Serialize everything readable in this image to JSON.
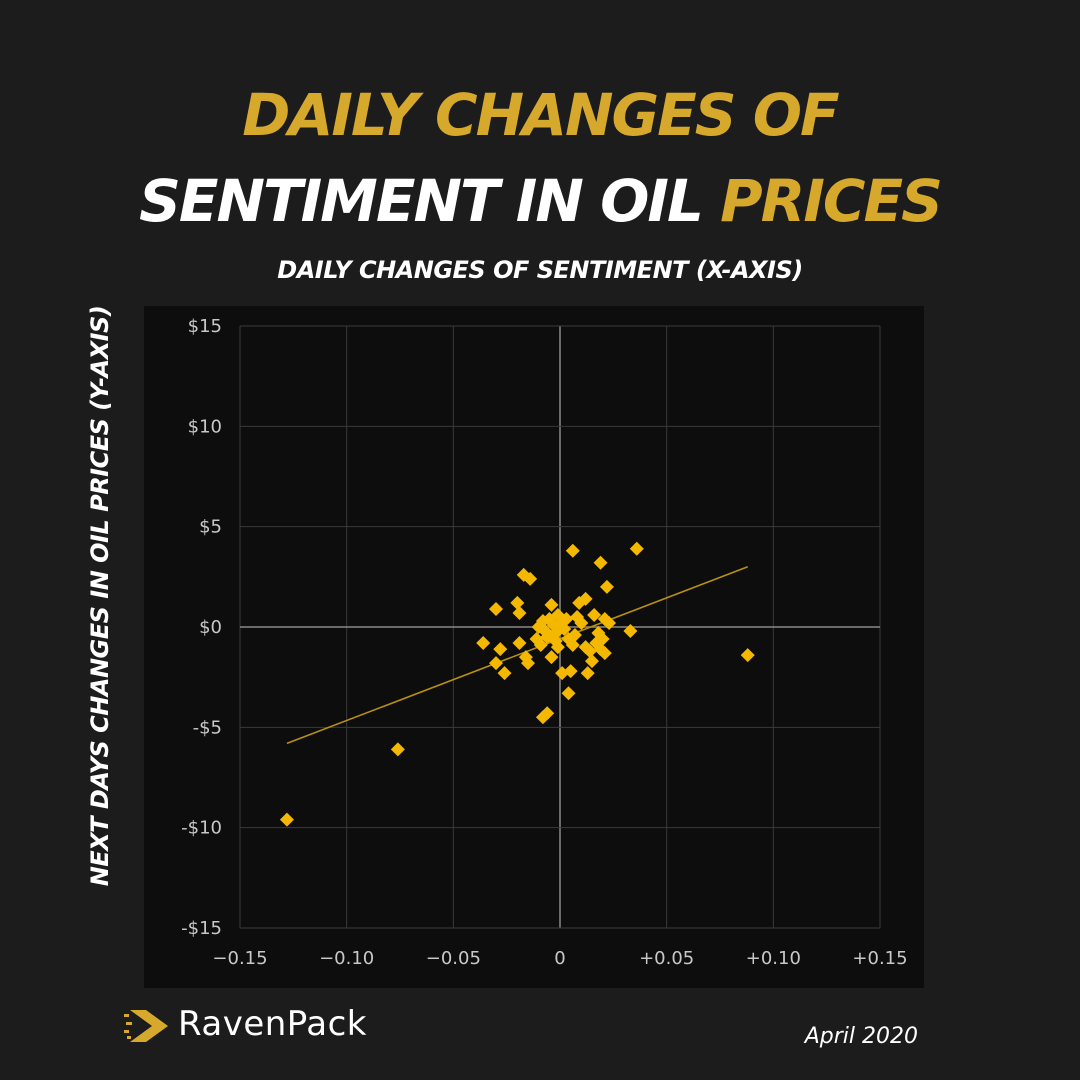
{
  "header": {
    "title_line1": "DAILY CHANGES OF",
    "title_line2_a": "SENTIMENT IN OIL",
    "title_line2_b": "PRICES"
  },
  "chart_data": {
    "type": "scatter",
    "xlabel": "DAILY CHANGES OF SENTIMENT (X-AXIS)",
    "ylabel": "NEXT DAYS CHANGES IN OIL PRICES (Y-AXIS)",
    "xlim": [
      -0.15,
      0.15
    ],
    "ylim": [
      -15,
      15
    ],
    "xticks": [
      {
        "value": -0.15,
        "label": "−0.15"
      },
      {
        "value": -0.1,
        "label": "−0.10"
      },
      {
        "value": -0.05,
        "label": "−0.05"
      },
      {
        "value": 0,
        "label": "0"
      },
      {
        "value": 0.05,
        "label": "+0.05"
      },
      {
        "value": 0.1,
        "label": "+0.10"
      },
      {
        "value": 0.15,
        "label": "+0.15"
      }
    ],
    "yticks": [
      {
        "value": 15,
        "label": "$15"
      },
      {
        "value": 10,
        "label": "$10"
      },
      {
        "value": 5,
        "label": "$5"
      },
      {
        "value": 0,
        "label": "$0"
      },
      {
        "value": -5,
        "label": "-$5"
      },
      {
        "value": -10,
        "label": "-$10"
      },
      {
        "value": -15,
        "label": "-$15"
      }
    ],
    "grid": true,
    "trendline": {
      "x": [
        -0.128,
        0.088
      ],
      "y": [
        -5.8,
        3.0
      ]
    },
    "points": [
      {
        "x": -0.128,
        "y": -9.6
      },
      {
        "x": -0.076,
        "y": -6.1
      },
      {
        "x": 0.088,
        "y": -1.4
      },
      {
        "x": 0.036,
        "y": 3.9
      },
      {
        "x": 0.006,
        "y": 3.8
      },
      {
        "x": 0.019,
        "y": 3.2
      },
      {
        "x": 0.022,
        "y": 2.0
      },
      {
        "x": -0.017,
        "y": 2.6
      },
      {
        "x": -0.014,
        "y": 2.4
      },
      {
        "x": -0.03,
        "y": 0.9
      },
      {
        "x": -0.02,
        "y": 1.2
      },
      {
        "x": -0.019,
        "y": 0.7
      },
      {
        "x": -0.004,
        "y": 1.1
      },
      {
        "x": -0.001,
        "y": 0.6
      },
      {
        "x": 0.009,
        "y": 1.2
      },
      {
        "x": 0.012,
        "y": 1.4
      },
      {
        "x": 0.016,
        "y": 0.6
      },
      {
        "x": 0.021,
        "y": 0.4
      },
      {
        "x": 0.023,
        "y": 0.2
      },
      {
        "x": 0.033,
        "y": -0.2
      },
      {
        "x": -0.036,
        "y": -0.8
      },
      {
        "x": -0.028,
        "y": -1.1
      },
      {
        "x": -0.03,
        "y": -1.8
      },
      {
        "x": -0.026,
        "y": -2.3
      },
      {
        "x": -0.019,
        "y": -0.8
      },
      {
        "x": -0.016,
        "y": -1.5
      },
      {
        "x": -0.015,
        "y": -1.8
      },
      {
        "x": -0.011,
        "y": -0.6
      },
      {
        "x": -0.01,
        "y": 0.0
      },
      {
        "x": -0.008,
        "y": 0.3
      },
      {
        "x": -0.007,
        "y": -0.2
      },
      {
        "x": -0.006,
        "y": -0.5
      },
      {
        "x": -0.005,
        "y": 0.4
      },
      {
        "x": -0.004,
        "y": -1.5
      },
      {
        "x": -0.003,
        "y": 0.1
      },
      {
        "x": -0.002,
        "y": -0.3
      },
      {
        "x": -0.001,
        "y": -1.0
      },
      {
        "x": 0.0,
        "y": 0.2
      },
      {
        "x": 0.001,
        "y": -2.3
      },
      {
        "x": 0.002,
        "y": -0.1
      },
      {
        "x": 0.003,
        "y": 0.4
      },
      {
        "x": 0.004,
        "y": -0.6
      },
      {
        "x": 0.005,
        "y": -2.2
      },
      {
        "x": 0.007,
        "y": -0.4
      },
      {
        "x": 0.008,
        "y": 0.5
      },
      {
        "x": 0.01,
        "y": 0.2
      },
      {
        "x": 0.012,
        "y": -1.0
      },
      {
        "x": 0.013,
        "y": -2.3
      },
      {
        "x": 0.015,
        "y": -1.7
      },
      {
        "x": 0.017,
        "y": -0.8
      },
      {
        "x": 0.019,
        "y": -1.1
      },
      {
        "x": 0.02,
        "y": -0.6
      },
      {
        "x": 0.021,
        "y": -1.3
      },
      {
        "x": 0.004,
        "y": -3.3
      },
      {
        "x": -0.008,
        "y": -4.5
      },
      {
        "x": -0.006,
        "y": -4.3
      },
      {
        "x": -0.009,
        "y": -0.9
      },
      {
        "x": -0.002,
        "y": -0.7
      },
      {
        "x": 0.006,
        "y": -0.9
      },
      {
        "x": 0.014,
        "y": -1.2
      },
      {
        "x": 0.018,
        "y": -0.3
      }
    ]
  },
  "colors": {
    "accent": "#d6a92c",
    "white": "#ffffff",
    "point": "#f5b800",
    "trendline": "#b8900e",
    "grid": "#3a3a3a",
    "zero_axis": "#8a8a8a",
    "tick_text": "#c8c8c8",
    "plot_bg": "#0d0d0d",
    "page_bg": "#1c1c1c"
  },
  "footer": {
    "brand": "RavenPack",
    "date": "April 2020"
  }
}
